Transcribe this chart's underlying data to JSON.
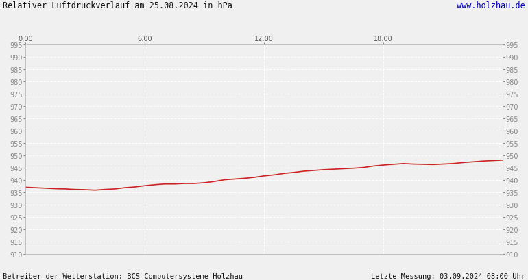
{
  "title": "Relativer Luftdruckverlauf am 25.08.2024 in hPa",
  "url_text": "www.holzhau.de",
  "footer_left": "Betreiber der Wetterstation: BCS Computersysteme Holzhau",
  "footer_right": "Letzte Messung: 03.09.2024 08:00 Uhr",
  "ylim": [
    910,
    995
  ],
  "ytick_step": 5,
  "xlim": [
    0,
    1440
  ],
  "xtick_positions": [
    0,
    360,
    720,
    1080
  ],
  "xtick_labels": [
    "0:00",
    "6:00",
    "12:00",
    "18:00"
  ],
  "line_color": "#cc2222",
  "line_width": 1.2,
  "bg_color": "#f0f0f0",
  "plot_bg_color": "#f0f0f0",
  "grid_color": "#ffffff",
  "grid_style": "--",
  "grid_linewidth": 0.7,
  "pressure_data_x": [
    0,
    30,
    60,
    90,
    120,
    150,
    180,
    210,
    240,
    270,
    300,
    330,
    360,
    390,
    420,
    450,
    480,
    510,
    540,
    570,
    600,
    630,
    660,
    690,
    720,
    750,
    780,
    810,
    840,
    870,
    900,
    930,
    960,
    990,
    1020,
    1050,
    1080,
    1110,
    1140,
    1170,
    1200,
    1230,
    1260,
    1290,
    1320,
    1350,
    1380,
    1410,
    1440
  ],
  "pressure_data_y": [
    937.2,
    937.0,
    936.8,
    936.6,
    936.5,
    936.3,
    936.2,
    936.0,
    936.3,
    936.5,
    937.0,
    937.3,
    937.8,
    938.2,
    938.5,
    938.5,
    938.7,
    938.7,
    939.0,
    939.5,
    940.2,
    940.5,
    940.8,
    941.2,
    941.8,
    942.2,
    942.8,
    943.2,
    943.7,
    944.0,
    944.3,
    944.5,
    944.7,
    944.9,
    945.2,
    945.8,
    946.2,
    946.5,
    946.8,
    946.6,
    946.5,
    946.4,
    946.6,
    946.8,
    947.2,
    947.5,
    947.8,
    948.0,
    948.2
  ]
}
